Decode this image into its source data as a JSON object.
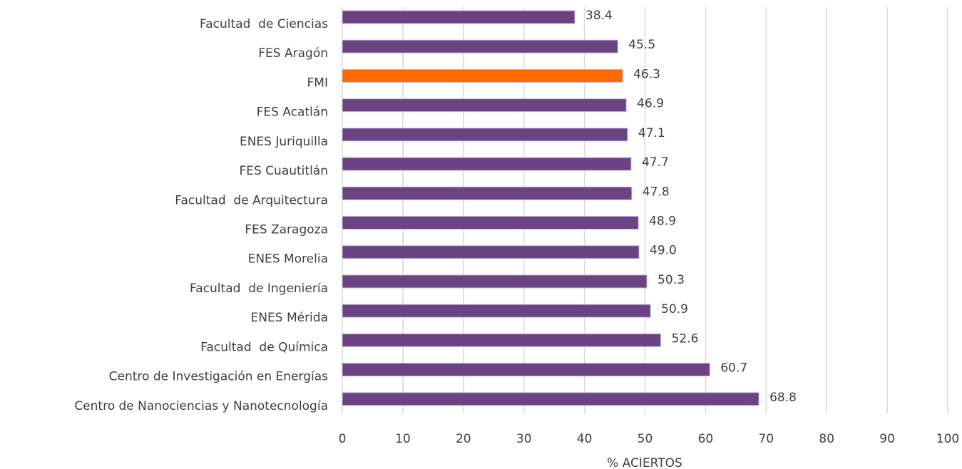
{
  "chart_data": {
    "type": "barh",
    "x_label": "% ACIERTOS",
    "categories": [
      "Facultad  de Ciencias",
      "FES Aragón",
      "FMI",
      "FES Acatlán",
      "ENES Juriquilla",
      "FES Cuautitlán",
      "Facultad  de Arquitectura",
      "FES Zaragoza",
      "ENES Morelia",
      "Facultad  de Ingeniería",
      "ENES Mérida",
      "Facultad  de Química",
      "Centro de Investigación en Energías",
      "Centro de Nanociencias y Nanotecnología"
    ],
    "values": [
      38.4,
      45.5,
      46.3,
      46.9,
      47.1,
      47.7,
      47.8,
      48.9,
      49.0,
      50.3,
      50.9,
      52.6,
      60.7,
      68.8
    ],
    "value_labels": [
      "38.4",
      "45.5",
      "46.3",
      "46.9",
      "47.1",
      "47.7",
      "47.8",
      "48.9",
      "49.0",
      "50.3",
      "50.9",
      "52.6",
      "60.7",
      "68.8"
    ],
    "colors": [
      "#6a4482",
      "#6a4482",
      "#ff6a00",
      "#6a4482",
      "#6a4482",
      "#6a4482",
      "#6a4482",
      "#6a4482",
      "#6a4482",
      "#6a4482",
      "#6a4482",
      "#6a4482",
      "#6a4482",
      "#6a4482"
    ],
    "xlim": [
      0,
      100
    ],
    "xticks": [
      0,
      10,
      20,
      30,
      40,
      50,
      60,
      70,
      80,
      90,
      100
    ],
    "grid": true
  }
}
